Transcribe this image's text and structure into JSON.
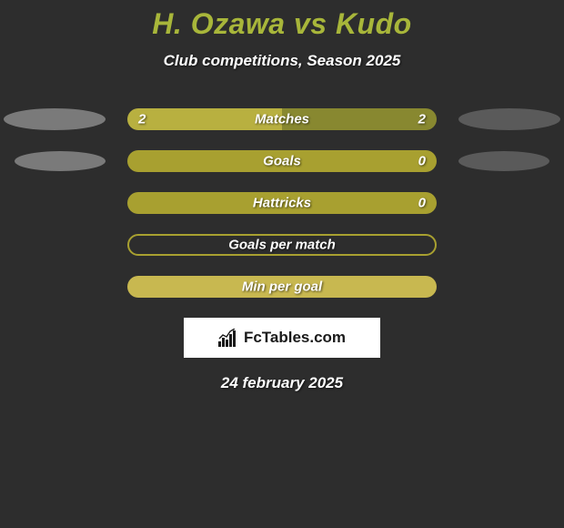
{
  "title": "H. Ozawa vs Kudo",
  "subtitle": "Club competitions, Season 2025",
  "date": "24 february 2025",
  "logo_text": "FcTables.com",
  "colors": {
    "background": "#2d2d2d",
    "accent": "#a8b63a",
    "bar_left": "#b8b040",
    "bar_right": "#888830",
    "bar_border": "#a8a030",
    "ellipse_light": "#c8c8c8",
    "ellipse_dark": "#888888",
    "text": "#ffffff",
    "logo_bg": "#ffffff",
    "logo_fg": "#1a1a1a"
  },
  "stats": [
    {
      "label": "Matches",
      "left_value": "2",
      "right_value": "2",
      "left_pct": 50,
      "right_pct": 50,
      "left_color": "#b8b040",
      "right_color": "#888830",
      "bordered": false,
      "show_ellipse": true,
      "ellipse_small": false
    },
    {
      "label": "Goals",
      "left_value": "",
      "right_value": "0",
      "left_pct": 100,
      "right_pct": 0,
      "left_color": "#a8a030",
      "right_color": "#888830",
      "bordered": false,
      "show_ellipse": true,
      "ellipse_small": true
    },
    {
      "label": "Hattricks",
      "left_value": "",
      "right_value": "0",
      "left_pct": 100,
      "right_pct": 0,
      "left_color": "#a8a030",
      "right_color": "#888830",
      "bordered": false,
      "show_ellipse": false
    },
    {
      "label": "Goals per match",
      "left_value": "",
      "right_value": "",
      "left_pct": 0,
      "right_pct": 0,
      "left_color": "",
      "right_color": "",
      "bordered": true,
      "show_ellipse": false
    },
    {
      "label": "Min per goal",
      "left_value": "",
      "right_value": "",
      "left_pct": 100,
      "right_pct": 0,
      "left_color": "#c8b850",
      "right_color": "",
      "bordered": false,
      "show_ellipse": false
    }
  ]
}
